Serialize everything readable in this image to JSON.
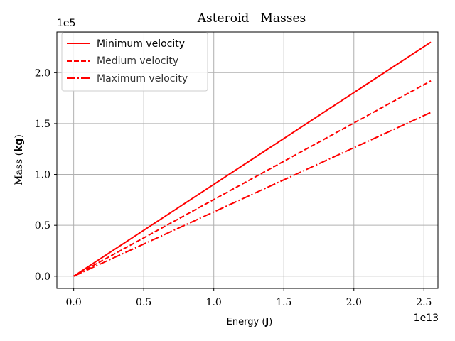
{
  "chart_data": {
    "type": "line",
    "title": "Asteroid   Masses",
    "xlabel_prefix": "Energy (",
    "xlabel_unit": "J",
    "xlabel_suffix": ")",
    "ylabel_prefix": "Mass (",
    "ylabel_unit": "kg",
    "ylabel_suffix": ")",
    "x_offset_text": "1e13",
    "y_offset_text": "1e5",
    "xlim": [
      -0.12,
      2.6
    ],
    "ylim": [
      -0.12,
      2.4
    ],
    "x_ticks": [
      0.0,
      0.5,
      1.0,
      1.5,
      2.0,
      2.5
    ],
    "x_tick_labels": [
      "0.0",
      "0.5",
      "1.0",
      "1.5",
      "2.0",
      "2.5"
    ],
    "y_ticks": [
      0.0,
      0.5,
      1.0,
      1.5,
      2.0
    ],
    "y_tick_labels": [
      "0.0",
      "0.5",
      "1.0",
      "1.5",
      "2.0"
    ],
    "grid": true,
    "legend_position": "upper-left",
    "color": "#ff0000",
    "series": [
      {
        "name": "Minimum velocity",
        "style": "solid",
        "x": [
          0.0,
          2.55
        ],
        "y": [
          0.0,
          2.3
        ]
      },
      {
        "name": "Medium velocity",
        "style": "dashed",
        "x": [
          0.0,
          2.55
        ],
        "y": [
          0.0,
          1.92
        ]
      },
      {
        "name": "Maximum velocity",
        "style": "dashdot",
        "x": [
          0.0,
          2.55
        ],
        "y": [
          0.0,
          1.61
        ]
      }
    ]
  }
}
